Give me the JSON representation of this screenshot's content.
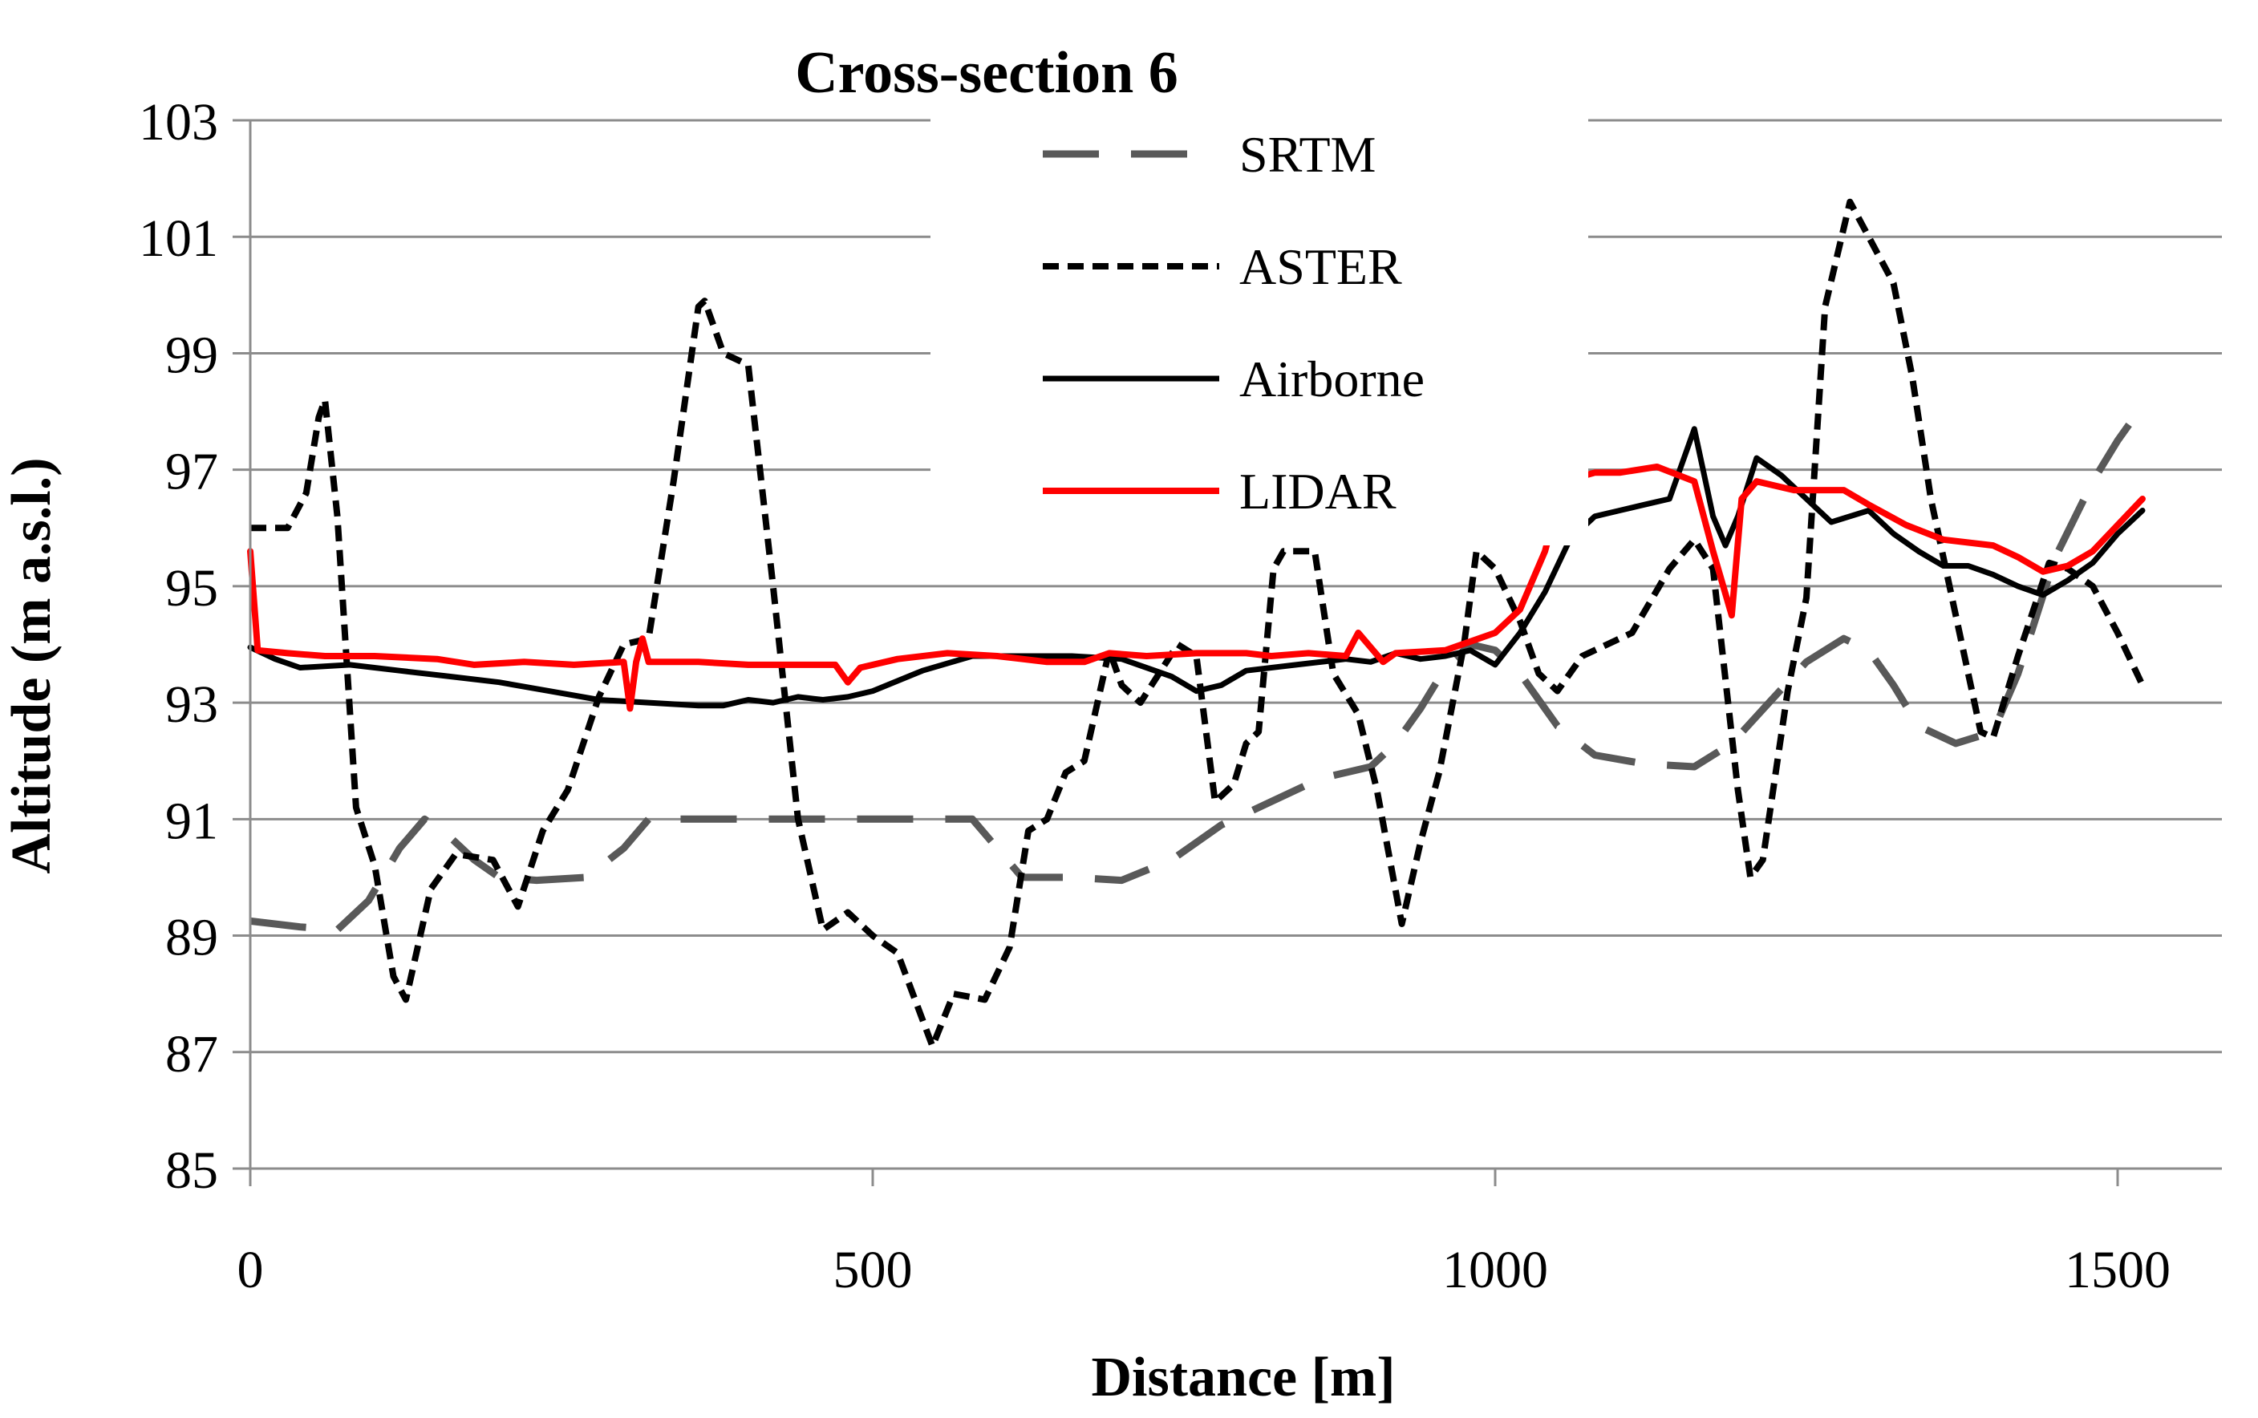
{
  "chart_data": {
    "type": "line",
    "title": "Cross-section 6",
    "xlabel": "Distance [m]",
    "ylabel": "Altitude (m a.s.l.)",
    "xlim": [
      0,
      1600
    ],
    "ylim": [
      85,
      103
    ],
    "x_ticks": [
      0,
      500,
      1000,
      1500
    ],
    "y_ticks": [
      85,
      87,
      89,
      91,
      93,
      95,
      97,
      99,
      101,
      103
    ],
    "grid": "horizontal",
    "legend_position": "top-center",
    "series": [
      {
        "name": "SRTM",
        "color": "#595959",
        "dash": "long-dash",
        "points": [
          [
            0,
            89.25
          ],
          [
            40,
            89.15
          ],
          [
            70,
            89.1
          ],
          [
            95,
            89.6
          ],
          [
            120,
            90.5
          ],
          [
            140,
            91.0
          ],
          [
            160,
            90.7
          ],
          [
            180,
            90.3
          ],
          [
            200,
            90.0
          ],
          [
            230,
            89.95
          ],
          [
            270,
            90.0
          ],
          [
            300,
            90.5
          ],
          [
            320,
            91.0
          ],
          [
            360,
            91.0
          ],
          [
            420,
            91.0
          ],
          [
            480,
            91.0
          ],
          [
            540,
            91.0
          ],
          [
            580,
            91.0
          ],
          [
            600,
            90.5
          ],
          [
            620,
            90.0
          ],
          [
            660,
            90.0
          ],
          [
            700,
            89.95
          ],
          [
            740,
            90.3
          ],
          [
            780,
            90.9
          ],
          [
            820,
            91.3
          ],
          [
            860,
            91.7
          ],
          [
            900,
            91.9
          ],
          [
            920,
            92.3
          ],
          [
            940,
            92.9
          ],
          [
            960,
            93.6
          ],
          [
            980,
            94.0
          ],
          [
            1000,
            93.9
          ],
          [
            1020,
            93.5
          ],
          [
            1050,
            92.6
          ],
          [
            1080,
            92.1
          ],
          [
            1120,
            91.95
          ],
          [
            1160,
            91.9
          ],
          [
            1190,
            92.3
          ],
          [
            1220,
            93.0
          ],
          [
            1250,
            93.7
          ],
          [
            1280,
            94.1
          ],
          [
            1300,
            93.9
          ],
          [
            1320,
            93.3
          ],
          [
            1340,
            92.6
          ],
          [
            1370,
            92.3
          ],
          [
            1400,
            92.5
          ],
          [
            1420,
            93.5
          ],
          [
            1450,
            95.5
          ],
          [
            1480,
            96.8
          ],
          [
            1500,
            97.5
          ],
          [
            1520,
            98.1
          ]
        ]
      },
      {
        "name": "ASTER",
        "color": "#000000",
        "dash": "short-dash",
        "points": [
          [
            0,
            96.0
          ],
          [
            30,
            96.0
          ],
          [
            45,
            96.6
          ],
          [
            55,
            97.9
          ],
          [
            60,
            98.2
          ],
          [
            70,
            96.2
          ],
          [
            85,
            91.2
          ],
          [
            100,
            90.2
          ],
          [
            115,
            88.3
          ],
          [
            125,
            87.9
          ],
          [
            145,
            89.8
          ],
          [
            165,
            90.4
          ],
          [
            195,
            90.3
          ],
          [
            215,
            89.5
          ],
          [
            235,
            90.8
          ],
          [
            255,
            91.5
          ],
          [
            280,
            93.1
          ],
          [
            300,
            94.0
          ],
          [
            320,
            94.1
          ],
          [
            340,
            96.8
          ],
          [
            360,
            99.8
          ],
          [
            365,
            99.9
          ],
          [
            380,
            99.0
          ],
          [
            400,
            98.8
          ],
          [
            420,
            95.0
          ],
          [
            440,
            91.0
          ],
          [
            460,
            89.1
          ],
          [
            480,
            89.4
          ],
          [
            500,
            89.0
          ],
          [
            520,
            88.7
          ],
          [
            548,
            87.1
          ],
          [
            565,
            88.0
          ],
          [
            590,
            87.9
          ],
          [
            610,
            88.8
          ],
          [
            625,
            90.8
          ],
          [
            640,
            91.0
          ],
          [
            655,
            91.8
          ],
          [
            670,
            92.0
          ],
          [
            690,
            93.9
          ],
          [
            700,
            93.3
          ],
          [
            715,
            93.0
          ],
          [
            730,
            93.5
          ],
          [
            745,
            94.0
          ],
          [
            760,
            93.8
          ],
          [
            775,
            91.3
          ],
          [
            790,
            91.6
          ],
          [
            800,
            92.3
          ],
          [
            810,
            92.5
          ],
          [
            822,
            95.3
          ],
          [
            830,
            95.6
          ],
          [
            855,
            95.6
          ],
          [
            870,
            93.5
          ],
          [
            890,
            92.8
          ],
          [
            905,
            91.5
          ],
          [
            925,
            89.2
          ],
          [
            940,
            90.6
          ],
          [
            955,
            91.8
          ],
          [
            975,
            94.0
          ],
          [
            985,
            95.6
          ],
          [
            1000,
            95.3
          ],
          [
            1020,
            94.4
          ],
          [
            1035,
            93.5
          ],
          [
            1050,
            93.2
          ],
          [
            1070,
            93.8
          ],
          [
            1090,
            94.0
          ],
          [
            1110,
            94.2
          ],
          [
            1140,
            95.3
          ],
          [
            1160,
            95.8
          ],
          [
            1175,
            95.3
          ],
          [
            1195,
            91.5
          ],
          [
            1205,
            90.0
          ],
          [
            1215,
            90.3
          ],
          [
            1235,
            93.2
          ],
          [
            1250,
            94.8
          ],
          [
            1265,
            99.8
          ],
          [
            1285,
            101.6
          ],
          [
            1300,
            101.0
          ],
          [
            1320,
            100.2
          ],
          [
            1335,
            98.6
          ],
          [
            1350,
            96.5
          ],
          [
            1370,
            94.5
          ],
          [
            1390,
            92.5
          ],
          [
            1400,
            92.4
          ],
          [
            1420,
            93.8
          ],
          [
            1445,
            95.4
          ],
          [
            1460,
            95.3
          ],
          [
            1480,
            95.0
          ],
          [
            1500,
            94.2
          ],
          [
            1520,
            93.3
          ]
        ]
      },
      {
        "name": "Airborne",
        "color": "#000000",
        "dash": "solid",
        "points": [
          [
            0,
            93.95
          ],
          [
            20,
            93.75
          ],
          [
            40,
            93.6
          ],
          [
            80,
            93.65
          ],
          [
            120,
            93.55
          ],
          [
            160,
            93.45
          ],
          [
            200,
            93.35
          ],
          [
            240,
            93.2
          ],
          [
            280,
            93.05
          ],
          [
            320,
            93.0
          ],
          [
            360,
            92.95
          ],
          [
            380,
            92.95
          ],
          [
            400,
            93.05
          ],
          [
            420,
            93.0
          ],
          [
            440,
            93.1
          ],
          [
            460,
            93.05
          ],
          [
            480,
            93.1
          ],
          [
            500,
            93.2
          ],
          [
            540,
            93.55
          ],
          [
            580,
            93.8
          ],
          [
            620,
            93.8
          ],
          [
            660,
            93.8
          ],
          [
            700,
            93.75
          ],
          [
            740,
            93.45
          ],
          [
            760,
            93.2
          ],
          [
            780,
            93.3
          ],
          [
            800,
            93.55
          ],
          [
            840,
            93.65
          ],
          [
            880,
            93.75
          ],
          [
            900,
            93.7
          ],
          [
            920,
            93.85
          ],
          [
            940,
            93.75
          ],
          [
            960,
            93.8
          ],
          [
            980,
            93.9
          ],
          [
            1000,
            93.65
          ],
          [
            1020,
            94.2
          ],
          [
            1040,
            94.9
          ],
          [
            1060,
            95.8
          ],
          [
            1080,
            96.2
          ],
          [
            1100,
            96.3
          ],
          [
            1120,
            96.4
          ],
          [
            1140,
            96.5
          ],
          [
            1160,
            97.7
          ],
          [
            1175,
            96.2
          ],
          [
            1185,
            95.7
          ],
          [
            1195,
            96.2
          ],
          [
            1210,
            97.2
          ],
          [
            1230,
            96.9
          ],
          [
            1250,
            96.5
          ],
          [
            1270,
            96.1
          ],
          [
            1300,
            96.3
          ],
          [
            1320,
            95.9
          ],
          [
            1340,
            95.6
          ],
          [
            1360,
            95.35
          ],
          [
            1380,
            95.35
          ],
          [
            1400,
            95.2
          ],
          [
            1420,
            95.0
          ],
          [
            1440,
            94.85
          ],
          [
            1460,
            95.1
          ],
          [
            1480,
            95.4
          ],
          [
            1500,
            95.9
          ],
          [
            1520,
            96.3
          ]
        ]
      },
      {
        "name": "LIDAR",
        "color": "#ff0000",
        "dash": "solid",
        "points": [
          [
            0,
            95.6
          ],
          [
            6,
            93.9
          ],
          [
            30,
            93.85
          ],
          [
            60,
            93.8
          ],
          [
            100,
            93.8
          ],
          [
            150,
            93.75
          ],
          [
            180,
            93.65
          ],
          [
            220,
            93.7
          ],
          [
            260,
            93.65
          ],
          [
            300,
            93.7
          ],
          [
            305,
            92.9
          ],
          [
            310,
            93.7
          ],
          [
            315,
            94.1
          ],
          [
            320,
            93.7
          ],
          [
            360,
            93.7
          ],
          [
            400,
            93.65
          ],
          [
            440,
            93.65
          ],
          [
            470,
            93.65
          ],
          [
            480,
            93.35
          ],
          [
            490,
            93.6
          ],
          [
            520,
            93.75
          ],
          [
            560,
            93.85
          ],
          [
            600,
            93.8
          ],
          [
            640,
            93.7
          ],
          [
            670,
            93.7
          ],
          [
            690,
            93.85
          ],
          [
            720,
            93.8
          ],
          [
            760,
            93.85
          ],
          [
            800,
            93.85
          ],
          [
            820,
            93.8
          ],
          [
            850,
            93.85
          ],
          [
            880,
            93.8
          ],
          [
            890,
            94.2
          ],
          [
            910,
            93.7
          ],
          [
            920,
            93.85
          ],
          [
            960,
            93.9
          ],
          [
            1000,
            94.2
          ],
          [
            1020,
            94.6
          ],
          [
            1040,
            95.6
          ],
          [
            1055,
            96.8
          ],
          [
            1080,
            96.95
          ],
          [
            1100,
            96.95
          ],
          [
            1130,
            97.05
          ],
          [
            1160,
            96.8
          ],
          [
            1175,
            95.6
          ],
          [
            1190,
            94.5
          ],
          [
            1198,
            96.5
          ],
          [
            1210,
            96.8
          ],
          [
            1240,
            96.65
          ],
          [
            1280,
            96.65
          ],
          [
            1300,
            96.4
          ],
          [
            1330,
            96.05
          ],
          [
            1360,
            95.8
          ],
          [
            1400,
            95.7
          ],
          [
            1420,
            95.5
          ],
          [
            1440,
            95.25
          ],
          [
            1460,
            95.35
          ],
          [
            1480,
            95.6
          ],
          [
            1500,
            96.05
          ],
          [
            1520,
            96.5
          ]
        ]
      }
    ]
  }
}
